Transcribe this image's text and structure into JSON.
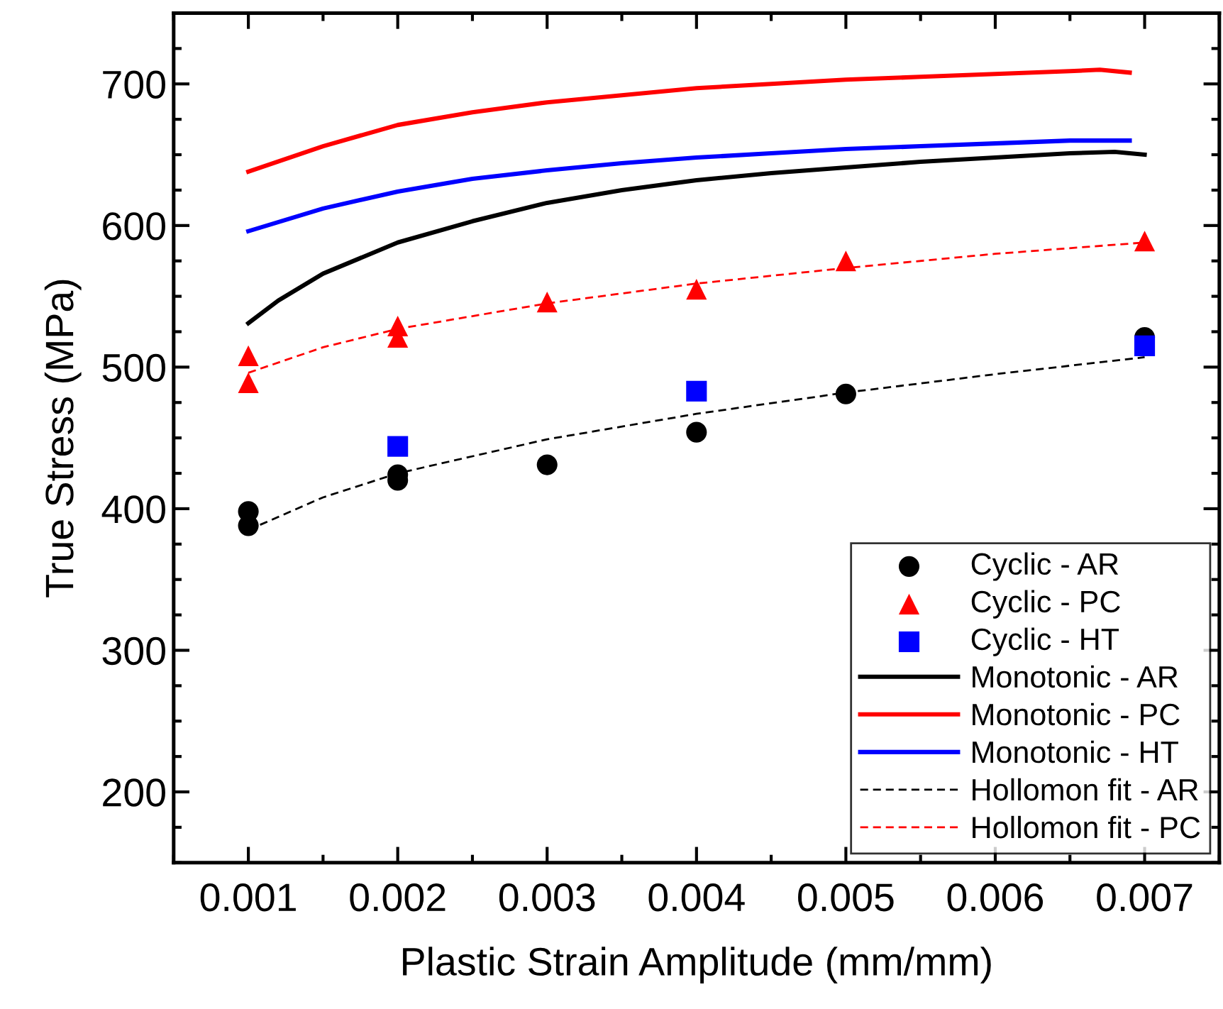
{
  "chart_data": {
    "type": "scatter",
    "xlabel": "Plastic Strain Amplitude (mm/mm)",
    "ylabel": "True Stress (MPa)",
    "xlim": [
      0.0005,
      0.0075
    ],
    "xticks": [
      0.001,
      0.002,
      0.003,
      0.004,
      0.005,
      0.006,
      0.007
    ],
    "ylim": [
      150,
      750
    ],
    "yticks": [
      200,
      300,
      400,
      500,
      600,
      700
    ],
    "grid": false,
    "legend": "bottom right",
    "series": [
      {
        "name": "Cyclic - AR",
        "type": "scatter",
        "marker": "circle",
        "color": "#000000",
        "x": [
          0.001,
          0.001,
          0.002,
          0.002,
          0.003,
          0.004,
          0.005,
          0.007
        ],
        "values": [
          398,
          388,
          424,
          420,
          431,
          454,
          481,
          521
        ]
      },
      {
        "name": "Cyclic - PC",
        "type": "scatter",
        "marker": "triangle",
        "color": "#ff0000",
        "x": [
          0.001,
          0.001,
          0.002,
          0.002,
          0.003,
          0.004,
          0.005,
          0.007
        ],
        "values": [
          508,
          489,
          529,
          521,
          546,
          555,
          575,
          589
        ]
      },
      {
        "name": "Cyclic - HT",
        "type": "scatter",
        "marker": "square",
        "color": "#0000ff",
        "x": [
          0.002,
          0.004,
          0.007
        ],
        "values": [
          444,
          483,
          515
        ]
      },
      {
        "name": "Monotonic - AR",
        "type": "line",
        "line_style": "solid",
        "color": "#000000",
        "x": [
          0.001,
          0.0012,
          0.0015,
          0.002,
          0.0025,
          0.003,
          0.0035,
          0.004,
          0.0045,
          0.005,
          0.0055,
          0.006,
          0.0065,
          0.0068,
          0.007
        ],
        "values": [
          531,
          547,
          566,
          588,
          603,
          616,
          625,
          632,
          637,
          641,
          645,
          648,
          651,
          652,
          650
        ]
      },
      {
        "name": "Monotonic - PC",
        "type": "line",
        "line_style": "solid",
        "color": "#ff0000",
        "x": [
          0.001,
          0.0015,
          0.002,
          0.0025,
          0.003,
          0.0035,
          0.004,
          0.0045,
          0.005,
          0.0055,
          0.006,
          0.0065,
          0.0067,
          0.0069
        ],
        "values": [
          638,
          656,
          671,
          680,
          687,
          692,
          697,
          700,
          703,
          705,
          707,
          709,
          710,
          708
        ]
      },
      {
        "name": "Monotonic - HT",
        "type": "line",
        "line_style": "solid",
        "color": "#0000ff",
        "x": [
          0.001,
          0.0015,
          0.002,
          0.0025,
          0.003,
          0.0035,
          0.004,
          0.0045,
          0.005,
          0.0055,
          0.006,
          0.0065,
          0.0069
        ],
        "values": [
          596,
          612,
          624,
          633,
          639,
          644,
          648,
          651,
          654,
          656,
          658,
          660,
          660
        ]
      },
      {
        "name": "Hollomon fit - AR",
        "type": "line",
        "line_style": "dashed",
        "color": "#000000",
        "x": [
          0.001,
          0.0015,
          0.002,
          0.003,
          0.004,
          0.005,
          0.006,
          0.007
        ],
        "values": [
          385,
          408,
          425,
          449,
          467,
          482,
          495,
          507
        ]
      },
      {
        "name": "Hollomon fit - PC",
        "type": "line",
        "line_style": "dashed",
        "color": "#ff0000",
        "x": [
          0.001,
          0.0015,
          0.002,
          0.003,
          0.004,
          0.005,
          0.006,
          0.007
        ],
        "values": [
          496,
          514,
          527,
          545,
          559,
          570,
          580,
          588
        ]
      }
    ]
  }
}
